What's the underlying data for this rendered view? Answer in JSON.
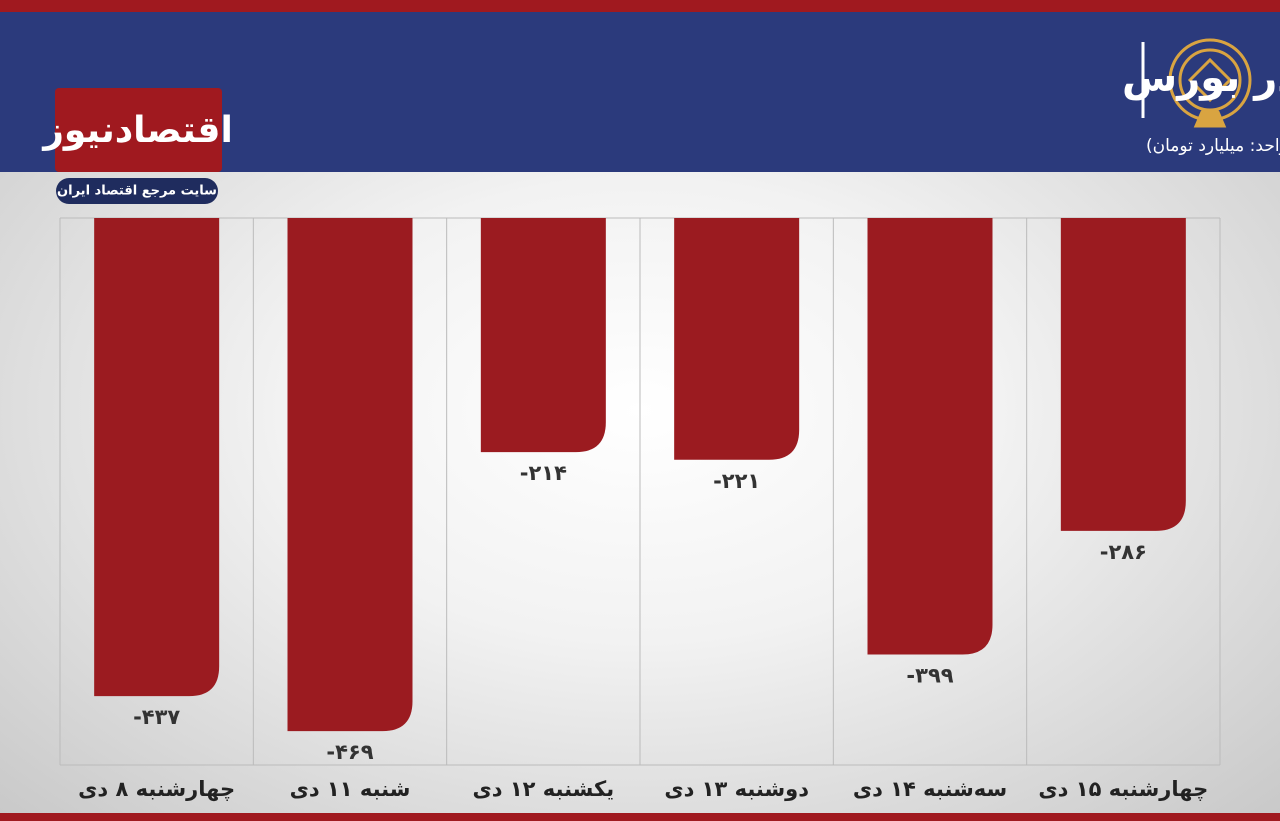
{
  "logo": {
    "name": "اقتصادنیوز",
    "tagline": "سایت مرجع اقتصاد ایران"
  },
  "chart_data": {
    "type": "bar",
    "title": "روند ورود و خروج پول حقیقی در بورس",
    "subtitle": "(واحد: میلیارد تومان)",
    "categories": [
      "چهارشنبه ۸ دی",
      "شنبه ۱۱ دی",
      "یکشنبه ۱۲ دی",
      "دوشنبه ۱۳ دی",
      "سه‌شنبه ۱۴ دی",
      "چهارشنبه ۱۵ دی"
    ],
    "values": [
      -437,
      -469,
      -214,
      -221,
      -399,
      -286
    ],
    "value_labels": [
      "-۴۳۷",
      "-۴۶۹",
      "-۲۱۴",
      "-۲۲۱",
      "-۳۹۹",
      "-۲۸۶"
    ],
    "color": "#9b1b20",
    "ylim": [
      -500,
      0
    ]
  }
}
